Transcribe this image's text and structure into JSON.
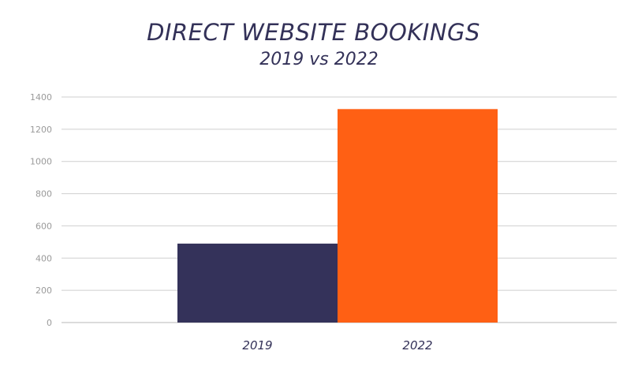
{
  "chart_data": {
    "type": "bar",
    "title": "DIRECT WEBSITE BOOKINGS",
    "subtitle": "2019 vs 2022",
    "categories": [
      "2019",
      "2022"
    ],
    "values": [
      490,
      1325
    ],
    "bar_colors": [
      "#34325a",
      "#ff6014"
    ],
    "ylim": [
      0,
      1400
    ],
    "yticks": [
      0,
      200,
      400,
      600,
      800,
      1000,
      1200,
      1400
    ],
    "xlabel": "",
    "ylabel": "",
    "grid": true,
    "gridline_color": "#cfcfcf"
  }
}
